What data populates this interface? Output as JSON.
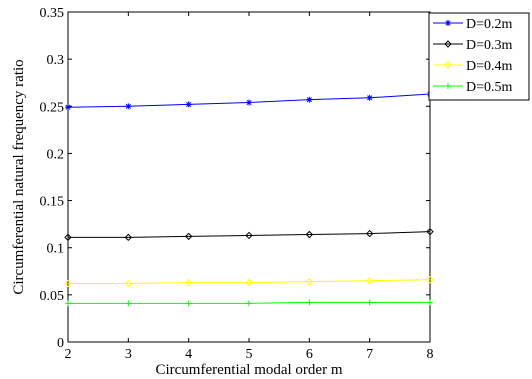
{
  "chart_data": {
    "type": "line",
    "title": "",
    "xlabel": "Circumferential modal order m",
    "ylabel": "Circumferential natural frequency ratio",
    "x": [
      2,
      3,
      4,
      5,
      6,
      7,
      8
    ],
    "xlim": [
      2,
      8
    ],
    "ylim": [
      0,
      0.35
    ],
    "xticks": [
      "2",
      "3",
      "4",
      "5",
      "6",
      "7",
      "8"
    ],
    "yticks": [
      "0",
      "0.05",
      "0.1",
      "0.15",
      "0.2",
      "0.25",
      "0.3",
      "0.35"
    ],
    "grid": false,
    "legend_position": "top-right",
    "series": [
      {
        "name": "D=0.2m",
        "color": "#0000ff",
        "marker": "asterisk",
        "values": [
          0.249,
          0.25,
          0.252,
          0.254,
          0.257,
          0.259,
          0.263
        ]
      },
      {
        "name": "D=0.3m",
        "color": "#000000",
        "marker": "diamond",
        "values": [
          0.111,
          0.111,
          0.112,
          0.113,
          0.114,
          0.115,
          0.117
        ]
      },
      {
        "name": "D=0.4m",
        "color": "#ffff00",
        "marker": "diamond",
        "values": [
          0.062,
          0.062,
          0.063,
          0.063,
          0.064,
          0.065,
          0.066
        ]
      },
      {
        "name": "D=0.5m",
        "color": "#00ff00",
        "marker": "plus",
        "values": [
          0.041,
          0.041,
          0.041,
          0.041,
          0.042,
          0.042,
          0.042
        ]
      }
    ]
  }
}
